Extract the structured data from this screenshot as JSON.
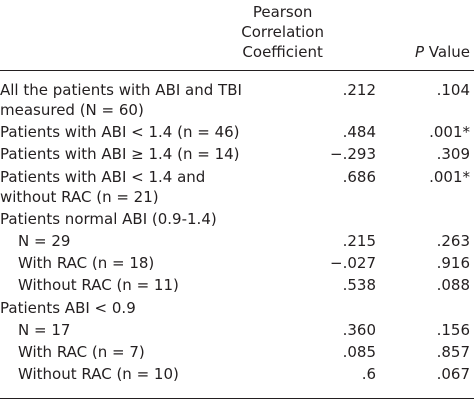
{
  "header": {
    "coefficient": [
      "Pearson",
      "Correlation",
      "Coefficient"
    ],
    "p_value": {
      "italic": "P",
      "text": "Value"
    }
  },
  "rows": [
    {
      "label": [
        "All the patients with ABI and TBI",
        "measured (N = 60)"
      ],
      "r": ".212",
      "p": ".104"
    },
    {
      "label": [
        "Patients with ABI < 1.4 (n = 46)"
      ],
      "r": ".484",
      "p": ".001*"
    },
    {
      "label": [
        "Patients with ABI ≥ 1.4 (n = 14)"
      ],
      "r": "−.293",
      "p": ".309"
    },
    {
      "label": [
        "Patients with ABI < 1.4 and",
        "without RAC (n = 21)"
      ],
      "r": ".686",
      "p": ".001*"
    },
    {
      "label": [
        "Patients normal ABI (0.9-1.4)"
      ]
    },
    {
      "label": [
        "N = 29"
      ],
      "r": ".215",
      "p": ".263",
      "indent": true
    },
    {
      "label": [
        "With RAC (n = 18)"
      ],
      "r": "−.027",
      "p": ".916",
      "indent": true
    },
    {
      "label": [
        "Without RAC (n = 11)"
      ],
      "r": ".538",
      "p": ".088",
      "indent": true
    },
    {
      "label": [
        "Patients ABI < 0.9"
      ]
    },
    {
      "label": [
        "N = 17"
      ],
      "r": ".360",
      "p": ".156",
      "indent": true
    },
    {
      "label": [
        "With RAC (n = 7)"
      ],
      "r": ".085",
      "p": ".857",
      "indent": true
    },
    {
      "label": [
        "Without RAC (n = 10)"
      ],
      "r": ".6",
      "p": ".067",
      "indent": true
    }
  ]
}
